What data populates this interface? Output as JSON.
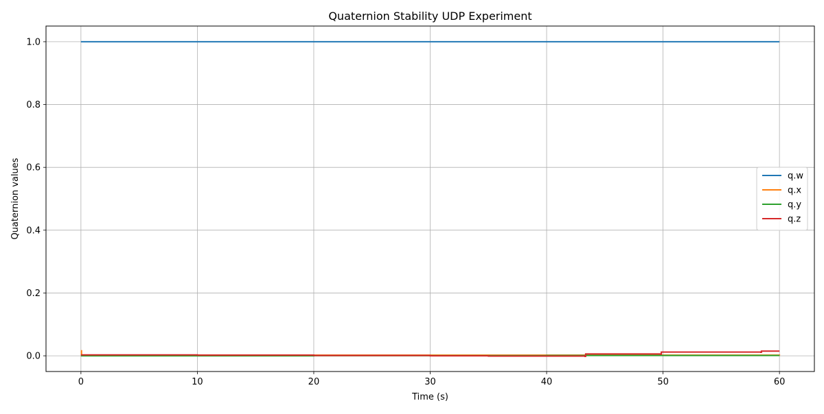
{
  "chart_data": {
    "type": "line",
    "title": "Quaternion Stability UDP Experiment",
    "xlabel": "Time (s)",
    "ylabel": "Quaternion values",
    "xlim": [
      -3,
      63
    ],
    "ylim": [
      -0.05,
      1.05
    ],
    "xticks": [
      0,
      10,
      20,
      30,
      40,
      50,
      60
    ],
    "yticks": [
      0.0,
      0.2,
      0.4,
      0.6,
      0.8,
      1.0
    ],
    "xtick_labels": [
      "0",
      "10",
      "20",
      "30",
      "40",
      "50",
      "60"
    ],
    "ytick_labels": [
      "0.0",
      "0.2",
      "0.4",
      "0.6",
      "0.8",
      "1.0"
    ],
    "grid": true,
    "legend_position": "center-right",
    "step": true,
    "series": [
      {
        "name": "q.w",
        "color": "#1f77b4",
        "x": [
          0,
          60
        ],
        "y": [
          1.0,
          1.0
        ]
      },
      {
        "name": "q.x",
        "color": "#ff7f0e",
        "x": [
          0,
          0.05,
          60
        ],
        "y": [
          0.016,
          0.002,
          0.001
        ]
      },
      {
        "name": "q.y",
        "color": "#2ca02c",
        "x": [
          0,
          20,
          40,
          60
        ],
        "y": [
          0.0,
          0.0005,
          0.001,
          0.001
        ]
      },
      {
        "name": "q.z",
        "color": "#d62728",
        "x": [
          0,
          10,
          20,
          30,
          35,
          43.3,
          43.35,
          49.8,
          49.85,
          58.4,
          58.45,
          60
        ],
        "y": [
          0.003,
          0.002,
          0.001,
          0.0,
          -0.001,
          -0.002,
          0.006,
          0.005,
          0.012,
          0.011,
          0.015,
          0.015
        ]
      }
    ]
  }
}
